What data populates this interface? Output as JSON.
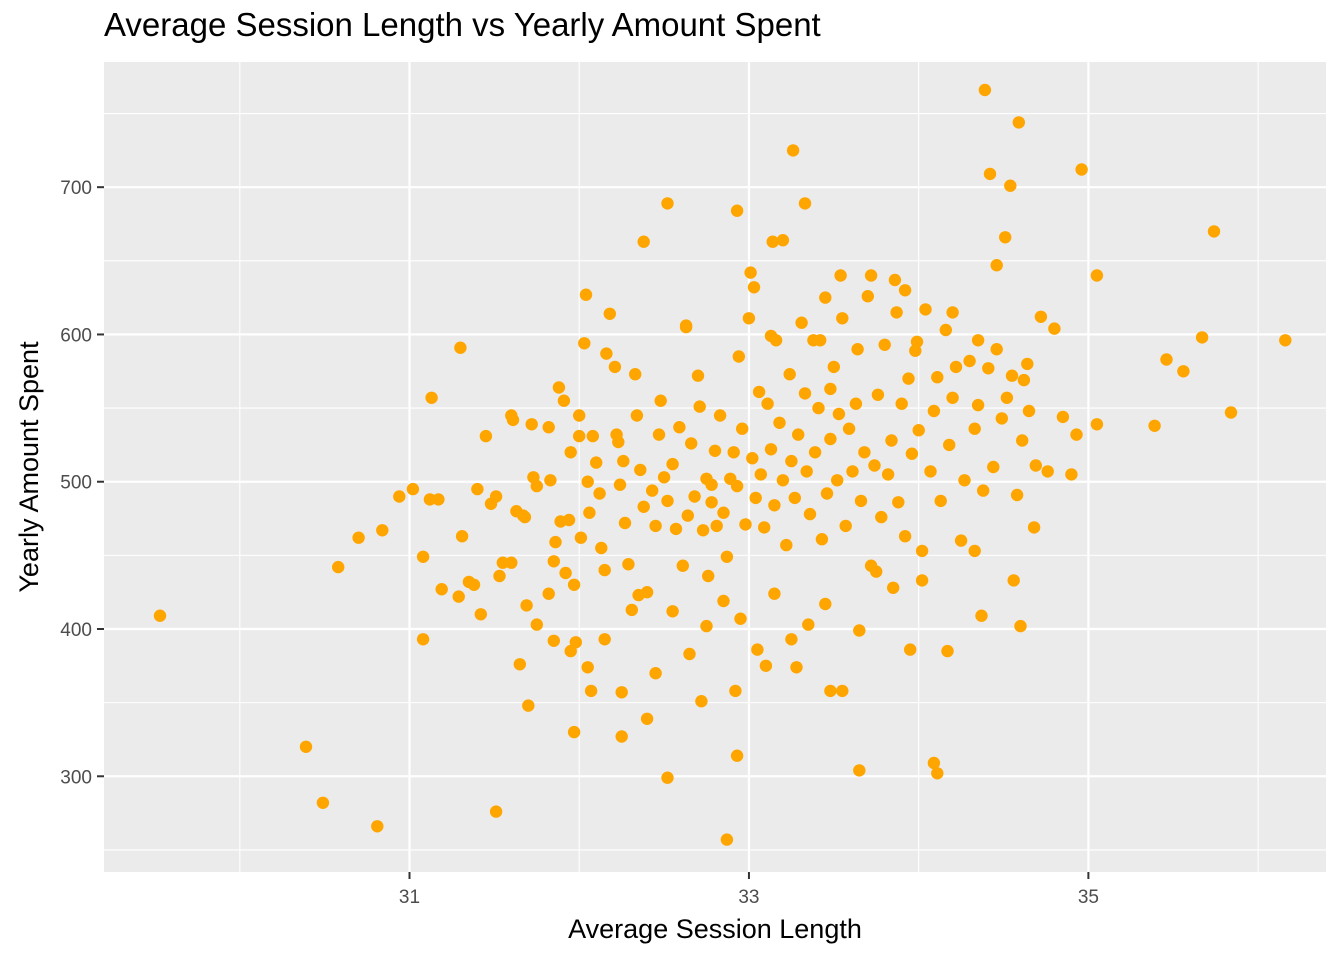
{
  "chart_data": {
    "type": "scatter",
    "title": "Average Session Length vs Yearly Amount Spent",
    "xlabel": "Average Session Length",
    "ylabel": "Yearly Amount Spent",
    "xlim": [
      29.2,
      36.4
    ],
    "ylim": [
      235,
      785
    ],
    "x_ticks": [
      31,
      33,
      35
    ],
    "y_ticks": [
      300,
      400,
      500,
      600,
      700
    ],
    "grid": true,
    "legend": "none",
    "colors": {
      "points": "#FFA500",
      "panel": "#EBEBEB",
      "grid": "#FFFFFF"
    },
    "points": [
      [
        29.53,
        409
      ],
      [
        30.39,
        320
      ],
      [
        30.49,
        282
      ],
      [
        30.58,
        442
      ],
      [
        30.81,
        266
      ],
      [
        30.94,
        490
      ],
      [
        31.08,
        393
      ],
      [
        31.13,
        557
      ],
      [
        31.3,
        591
      ],
      [
        31.51,
        276
      ],
      [
        31.7,
        348
      ],
      [
        32.04,
        627
      ],
      [
        32.25,
        327
      ],
      [
        32.38,
        663
      ],
      [
        32.52,
        689
      ],
      [
        32.52,
        299
      ],
      [
        32.87,
        257
      ],
      [
        32.93,
        684
      ],
      [
        33.14,
        663
      ],
      [
        33.26,
        725
      ],
      [
        33.33,
        689
      ],
      [
        33.65,
        304
      ],
      [
        34.09,
        309
      ],
      [
        34.11,
        302
      ],
      [
        34.39,
        766
      ],
      [
        34.42,
        709
      ],
      [
        34.59,
        744
      ],
      [
        34.54,
        701
      ],
      [
        34.51,
        666
      ],
      [
        34.46,
        647
      ],
      [
        34.96,
        712
      ],
      [
        35.05,
        640
      ],
      [
        35.05,
        539
      ],
      [
        35.39,
        538
      ],
      [
        35.46,
        583
      ],
      [
        35.56,
        575
      ],
      [
        35.67,
        598
      ],
      [
        35.74,
        670
      ],
      [
        35.84,
        547
      ],
      [
        36.16,
        596
      ],
      [
        30.7,
        462
      ],
      [
        30.84,
        467
      ],
      [
        31.02,
        495
      ],
      [
        31.08,
        449
      ],
      [
        31.12,
        488
      ],
      [
        31.17,
        488
      ],
      [
        31.19,
        427
      ],
      [
        31.29,
        422
      ],
      [
        31.31,
        463
      ],
      [
        31.35,
        432
      ],
      [
        31.38,
        430
      ],
      [
        31.4,
        495
      ],
      [
        31.42,
        410
      ],
      [
        31.45,
        531
      ],
      [
        31.48,
        485
      ],
      [
        31.51,
        490
      ],
      [
        31.53,
        436
      ],
      [
        31.55,
        445
      ],
      [
        31.6,
        545
      ],
      [
        31.61,
        542
      ],
      [
        31.63,
        480
      ],
      [
        31.67,
        477
      ],
      [
        31.68,
        476
      ],
      [
        31.69,
        416
      ],
      [
        31.72,
        539
      ],
      [
        31.73,
        503
      ],
      [
        31.75,
        497
      ],
      [
        31.82,
        537
      ],
      [
        31.83,
        501
      ],
      [
        31.85,
        446
      ],
      [
        31.86,
        459
      ],
      [
        31.89,
        473
      ],
      [
        31.91,
        555
      ],
      [
        31.92,
        438
      ],
      [
        31.94,
        474
      ],
      [
        31.95,
        520
      ],
      [
        31.97,
        430
      ],
      [
        31.98,
        391
      ],
      [
        32.0,
        545
      ],
      [
        32.01,
        462
      ],
      [
        32.03,
        594
      ],
      [
        32.05,
        500
      ],
      [
        32.06,
        479
      ],
      [
        32.08,
        531
      ],
      [
        32.1,
        513
      ],
      [
        32.12,
        492
      ],
      [
        32.13,
        455
      ],
      [
        32.15,
        440
      ],
      [
        32.16,
        587
      ],
      [
        32.18,
        614
      ],
      [
        32.21,
        578
      ],
      [
        32.22,
        532
      ],
      [
        32.24,
        498
      ],
      [
        32.26,
        514
      ],
      [
        32.27,
        472
      ],
      [
        32.29,
        444
      ],
      [
        32.31,
        413
      ],
      [
        32.33,
        573
      ],
      [
        32.34,
        545
      ],
      [
        32.36,
        508
      ],
      [
        32.38,
        483
      ],
      [
        32.4,
        425
      ],
      [
        32.43,
        494
      ],
      [
        32.45,
        470
      ],
      [
        32.47,
        532
      ],
      [
        32.48,
        555
      ],
      [
        32.5,
        503
      ],
      [
        32.52,
        487
      ],
      [
        32.55,
        512
      ],
      [
        32.57,
        468
      ],
      [
        32.59,
        537
      ],
      [
        32.61,
        443
      ],
      [
        32.63,
        606
      ],
      [
        32.64,
        477
      ],
      [
        32.66,
        526
      ],
      [
        32.68,
        490
      ],
      [
        32.7,
        572
      ],
      [
        32.71,
        551
      ],
      [
        32.73,
        467
      ],
      [
        32.75,
        502
      ],
      [
        32.76,
        436
      ],
      [
        32.78,
        486
      ],
      [
        32.8,
        521
      ],
      [
        32.81,
        470
      ],
      [
        32.83,
        545
      ],
      [
        32.85,
        479
      ],
      [
        32.87,
        449
      ],
      [
        32.89,
        502
      ],
      [
        32.91,
        520
      ],
      [
        32.93,
        497
      ],
      [
        32.94,
        585
      ],
      [
        32.96,
        536
      ],
      [
        32.98,
        471
      ],
      [
        33.0,
        611
      ],
      [
        33.02,
        516
      ],
      [
        33.04,
        489
      ],
      [
        33.06,
        561
      ],
      [
        33.07,
        505
      ],
      [
        33.09,
        469
      ],
      [
        33.11,
        553
      ],
      [
        33.13,
        522
      ],
      [
        33.15,
        484
      ],
      [
        33.16,
        596
      ],
      [
        33.18,
        540
      ],
      [
        33.2,
        501
      ],
      [
        33.22,
        457
      ],
      [
        33.24,
        573
      ],
      [
        33.25,
        514
      ],
      [
        33.27,
        489
      ],
      [
        33.29,
        532
      ],
      [
        33.31,
        608
      ],
      [
        33.33,
        560
      ],
      [
        33.34,
        507
      ],
      [
        33.36,
        478
      ],
      [
        33.38,
        596
      ],
      [
        33.39,
        520
      ],
      [
        33.41,
        550
      ],
      [
        33.43,
        461
      ],
      [
        33.45,
        625
      ],
      [
        33.46,
        492
      ],
      [
        33.48,
        529
      ],
      [
        33.5,
        578
      ],
      [
        33.52,
        501
      ],
      [
        33.53,
        546
      ],
      [
        33.55,
        611
      ],
      [
        33.57,
        470
      ],
      [
        33.59,
        536
      ],
      [
        33.61,
        507
      ],
      [
        33.63,
        553
      ],
      [
        33.64,
        590
      ],
      [
        33.66,
        487
      ],
      [
        33.68,
        520
      ],
      [
        33.7,
        626
      ],
      [
        33.72,
        443
      ],
      [
        33.74,
        511
      ],
      [
        33.76,
        559
      ],
      [
        33.78,
        476
      ],
      [
        33.8,
        593
      ],
      [
        33.82,
        505
      ],
      [
        33.84,
        528
      ],
      [
        33.86,
        637
      ],
      [
        33.88,
        486
      ],
      [
        33.9,
        553
      ],
      [
        33.92,
        463
      ],
      [
        33.94,
        570
      ],
      [
        33.96,
        519
      ],
      [
        33.98,
        589
      ],
      [
        34.0,
        535
      ],
      [
        34.02,
        453
      ],
      [
        34.04,
        617
      ],
      [
        34.07,
        507
      ],
      [
        34.09,
        548
      ],
      [
        34.11,
        571
      ],
      [
        34.13,
        487
      ],
      [
        34.16,
        603
      ],
      [
        34.18,
        525
      ],
      [
        34.2,
        557
      ],
      [
        34.22,
        578
      ],
      [
        34.25,
        460
      ],
      [
        34.27,
        501
      ],
      [
        34.3,
        582
      ],
      [
        34.33,
        536
      ],
      [
        34.35,
        552
      ],
      [
        34.38,
        494
      ],
      [
        34.41,
        577
      ],
      [
        34.44,
        510
      ],
      [
        34.46,
        590
      ],
      [
        34.49,
        543
      ],
      [
        34.52,
        557
      ],
      [
        34.55,
        572
      ],
      [
        34.58,
        491
      ],
      [
        34.61,
        528
      ],
      [
        34.65,
        548
      ],
      [
        34.69,
        511
      ],
      [
        34.72,
        612
      ],
      [
        34.76,
        507
      ],
      [
        34.8,
        604
      ],
      [
        34.85,
        544
      ],
      [
        34.9,
        505
      ],
      [
        34.93,
        532
      ],
      [
        32.95,
        407
      ],
      [
        33.05,
        386
      ],
      [
        33.15,
        424
      ],
      [
        33.25,
        393
      ],
      [
        33.35,
        403
      ],
      [
        33.45,
        417
      ],
      [
        33.55,
        358
      ],
      [
        33.65,
        399
      ],
      [
        33.75,
        439
      ],
      [
        33.85,
        428
      ],
      [
        33.95,
        386
      ],
      [
        32.65,
        383
      ],
      [
        32.75,
        402
      ],
      [
        32.85,
        419
      ],
      [
        32.55,
        412
      ],
      [
        32.45,
        370
      ],
      [
        32.35,
        423
      ],
      [
        32.25,
        357
      ],
      [
        32.15,
        393
      ],
      [
        32.05,
        374
      ],
      [
        31.95,
        385
      ],
      [
        31.85,
        392
      ],
      [
        31.75,
        403
      ],
      [
        31.65,
        376
      ],
      [
        32.07,
        358
      ],
      [
        31.97,
        330
      ],
      [
        32.4,
        339
      ],
      [
        32.72,
        351
      ],
      [
        32.92,
        358
      ],
      [
        32.93,
        314
      ],
      [
        33.1,
        375
      ],
      [
        33.28,
        374
      ],
      [
        33.48,
        358
      ],
      [
        34.17,
        385
      ],
      [
        34.6,
        402
      ],
      [
        34.37,
        409
      ],
      [
        34.56,
        433
      ],
      [
        34.68,
        469
      ],
      [
        34.33,
        453
      ],
      [
        34.02,
        433
      ],
      [
        31.82,
        424
      ],
      [
        31.6,
        445
      ],
      [
        32.0,
        531
      ],
      [
        31.88,
        564
      ],
      [
        32.23,
        527
      ],
      [
        32.63,
        605
      ],
      [
        32.78,
        498
      ],
      [
        33.48,
        563
      ],
      [
        33.92,
        630
      ],
      [
        34.2,
        615
      ],
      [
        33.54,
        640
      ],
      [
        33.72,
        640
      ],
      [
        33.01,
        642
      ],
      [
        33.03,
        632
      ],
      [
        33.2,
        664
      ],
      [
        33.13,
        599
      ],
      [
        33.42,
        596
      ],
      [
        33.87,
        615
      ],
      [
        33.99,
        595
      ],
      [
        34.35,
        596
      ],
      [
        34.62,
        569
      ],
      [
        34.64,
        580
      ]
    ]
  }
}
